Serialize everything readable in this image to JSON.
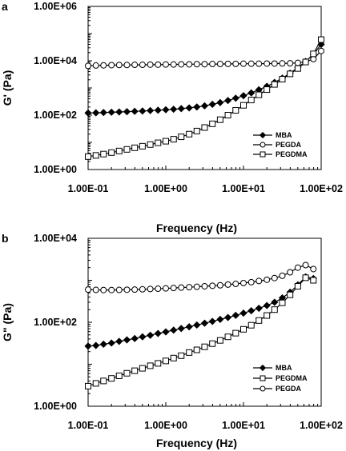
{
  "chart_data": [
    {
      "panel": "a",
      "type": "line",
      "xscale": "log",
      "yscale": "log",
      "xlabel": "Frequency (Hz)",
      "ylabel": "G' (Pa)",
      "xlim": [
        0.1,
        100
      ],
      "ylim": [
        1,
        1000000
      ],
      "xticks": [
        0.1,
        1,
        10,
        100
      ],
      "yticks": [
        1,
        100,
        10000,
        1000000
      ],
      "xtick_labels": [
        "1.00E-01",
        "1.00E+00",
        "1.00E+01",
        "1.00E+02"
      ],
      "ytick_labels": [
        "1.00E+00",
        "1.00E+02",
        "1.00E+04",
        "1.00E+06"
      ],
      "legend": "bottom-right",
      "legend_order": [
        "MBA",
        "PEGDA",
        "PEGDMA"
      ],
      "grid": false,
      "series": [
        {
          "name": "MBA",
          "marker": "diamond",
          "x": [
            0.1,
            0.126,
            0.158,
            0.2,
            0.251,
            0.316,
            0.398,
            0.501,
            0.631,
            0.794,
            1,
            1.26,
            1.58,
            2,
            2.51,
            3.16,
            3.98,
            5.01,
            6.31,
            7.94,
            10,
            12.6,
            15.8,
            20,
            25.1,
            31.6,
            39.8,
            50.1,
            63.1,
            79.4,
            100
          ],
          "y": [
            120,
            122,
            125,
            128,
            131,
            134,
            138,
            142,
            147,
            152,
            158,
            165,
            174,
            185,
            200,
            220,
            250,
            290,
            345,
            420,
            520,
            660,
            860,
            1150,
            1600,
            2300,
            3500,
            5600,
            9500,
            17000,
            40000
          ]
        },
        {
          "name": "PEGDA",
          "marker": "circle",
          "x": [
            0.1,
            0.126,
            0.158,
            0.2,
            0.251,
            0.316,
            0.398,
            0.501,
            0.631,
            0.794,
            1,
            1.26,
            1.58,
            2,
            2.51,
            3.16,
            3.98,
            5.01,
            6.31,
            7.94,
            10,
            12.6,
            15.8,
            20,
            25.1,
            31.6,
            39.8,
            50.1,
            63.1,
            79.4,
            100
          ],
          "y": [
            6500,
            6700,
            6800,
            6900,
            7000,
            7000,
            7100,
            7100,
            7200,
            7200,
            7300,
            7300,
            7400,
            7400,
            7500,
            7500,
            7600,
            7600,
            7700,
            7700,
            7800,
            7800,
            7800,
            7900,
            7900,
            8000,
            8100,
            8400,
            9200,
            11500,
            23000
          ]
        },
        {
          "name": "PEGDMA",
          "marker": "square",
          "x": [
            0.1,
            0.126,
            0.158,
            0.2,
            0.251,
            0.316,
            0.398,
            0.501,
            0.631,
            0.794,
            1,
            1.26,
            1.58,
            2,
            2.51,
            3.16,
            3.98,
            5.01,
            6.31,
            7.94,
            10,
            12.6,
            15.8,
            20,
            25.1,
            31.6,
            39.8,
            50.1,
            63.1,
            79.4,
            100
          ],
          "y": [
            3,
            3.3,
            3.7,
            4.2,
            4.8,
            5.5,
            6.3,
            7.2,
            8.3,
            9.6,
            11,
            13,
            16,
            20,
            26,
            35,
            48,
            68,
            100,
            150,
            230,
            360,
            560,
            870,
            1350,
            2100,
            3300,
            5200,
            9000,
            18000,
            60000
          ]
        }
      ]
    },
    {
      "panel": "b",
      "type": "line",
      "xscale": "log",
      "yscale": "log",
      "xlabel": "Frequency  (Hz)",
      "ylabel": "G\" (Pa)",
      "xlim": [
        0.1,
        100
      ],
      "ylim": [
        1,
        10000
      ],
      "xticks": [
        0.1,
        1,
        10,
        100
      ],
      "yticks": [
        1,
        100,
        10000
      ],
      "xtick_labels": [
        "1.00E-01",
        "1.00E+00",
        "1.00E+01",
        "1.00E+02"
      ],
      "ytick_labels": [
        "1.00E+00",
        "1.00E+02",
        "1.00E+04"
      ],
      "legend": "bottom-right",
      "legend_order": [
        "MBA",
        "PEGDMA",
        "PEGDA"
      ],
      "grid": false,
      "series": [
        {
          "name": "MBA",
          "marker": "diamond",
          "x": [
            0.1,
            0.126,
            0.158,
            0.2,
            0.251,
            0.316,
            0.398,
            0.501,
            0.631,
            0.794,
            1,
            1.26,
            1.58,
            2,
            2.51,
            3.16,
            3.98,
            5.01,
            6.31,
            7.94,
            10,
            12.6,
            15.8,
            20,
            25.1,
            31.6,
            39.8,
            50.1,
            63.1,
            79.4
          ],
          "y": [
            27,
            28,
            30,
            32,
            35,
            38,
            41,
            45,
            49,
            54,
            59,
            65,
            71,
            78,
            86,
            95,
            105,
            117,
            130,
            146,
            165,
            188,
            215,
            250,
            300,
            380,
            520,
            780,
            1200,
            1100
          ]
        },
        {
          "name": "PEGDMA",
          "marker": "square",
          "x": [
            0.1,
            0.126,
            0.158,
            0.2,
            0.251,
            0.316,
            0.398,
            0.501,
            0.631,
            0.794,
            1,
            1.26,
            1.58,
            2,
            2.51,
            3.16,
            3.98,
            5.01,
            6.31,
            7.94,
            10,
            12.6,
            15.8,
            20,
            25.1,
            31.6,
            39.8,
            50.1,
            63.1,
            79.4
          ],
          "y": [
            3,
            3.5,
            4,
            4.6,
            5.3,
            6.1,
            7,
            8,
            9.2,
            10.5,
            12,
            14,
            16,
            19,
            22,
            26,
            31,
            37,
            45,
            55,
            68,
            85,
            110,
            145,
            200,
            290,
            450,
            720,
            1150,
            1000
          ]
        },
        {
          "name": "PEGDA",
          "marker": "circle",
          "x": [
            0.1,
            0.126,
            0.158,
            0.2,
            0.251,
            0.316,
            0.398,
            0.501,
            0.631,
            0.794,
            1,
            1.26,
            1.58,
            2,
            2.51,
            3.16,
            3.98,
            5.01,
            6.31,
            7.94,
            10,
            12.6,
            15.8,
            20,
            25.1,
            31.6,
            39.8,
            50.1,
            63.1,
            79.4
          ],
          "y": [
            600,
            590,
            585,
            585,
            590,
            595,
            600,
            610,
            620,
            630,
            640,
            655,
            670,
            685,
            700,
            720,
            740,
            760,
            790,
            820,
            860,
            900,
            960,
            1030,
            1130,
            1280,
            1550,
            2000,
            2300,
            1850
          ]
        }
      ]
    }
  ]
}
